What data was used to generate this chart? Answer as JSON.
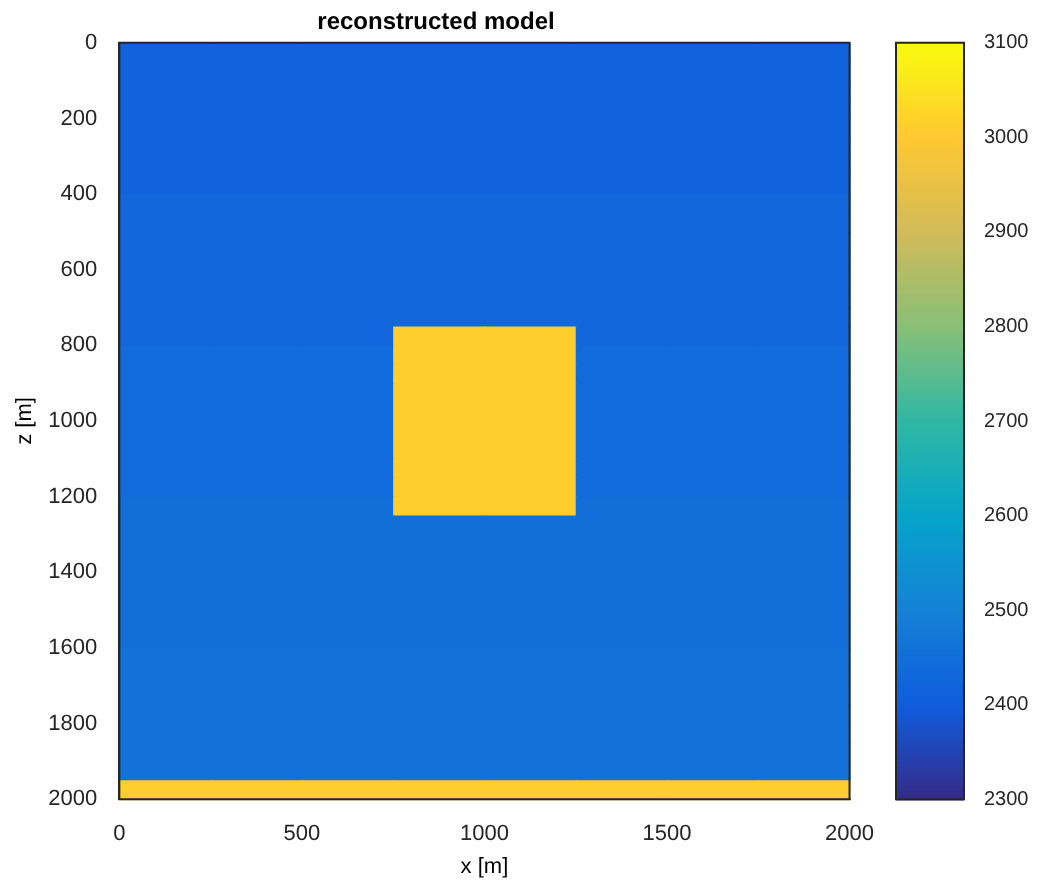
{
  "chart_data": {
    "type": "heatmap",
    "title": "reconstructed model",
    "xlabel": "x [m]",
    "ylabel": "z [m]",
    "x": [
      125,
      375,
      625,
      875,
      1125,
      1375,
      1625,
      1875
    ],
    "y": [
      25,
      75,
      125,
      175,
      225,
      275,
      325,
      375,
      425,
      475,
      525,
      575,
      625,
      675,
      725,
      775,
      825,
      875,
      925,
      975,
      1025,
      1075,
      1125,
      1175,
      1225,
      1275,
      1325,
      1375,
      1425,
      1475,
      1525,
      1575,
      1625,
      1675,
      1725,
      1775,
      1825,
      1875,
      1925,
      1975
    ],
    "xlim": [
      0,
      2000
    ],
    "xticks": [
      0,
      500,
      1000,
      1500,
      2000
    ],
    "ylim": [
      2000,
      0
    ],
    "yticks": [
      0,
      200,
      400,
      600,
      800,
      1000,
      1200,
      1400,
      1600,
      1800,
      2000
    ],
    "clim": [
      2300,
      3100
    ],
    "cticks": [
      2300,
      2400,
      2500,
      2600,
      2700,
      2800,
      2900,
      3000,
      3100
    ],
    "cells": [
      [
        2420,
        2420,
        2420,
        2420,
        2420,
        2420,
        2420,
        2420
      ],
      [
        2420,
        2420,
        2420,
        2420,
        2420,
        2420,
        2420,
        2420
      ],
      [
        2420,
        2420,
        2420,
        2420,
        2420,
        2420,
        2420,
        2420
      ],
      [
        2420,
        2420,
        2420,
        2420,
        2420,
        2420,
        2420,
        2420
      ],
      [
        2420,
        2420,
        2420,
        2420,
        2420,
        2420,
        2420,
        2420
      ],
      [
        2420,
        2420,
        2420,
        2420,
        2420,
        2420,
        2420,
        2420
      ],
      [
        2420,
        2420,
        2420,
        2420,
        2420,
        2420,
        2420,
        2420
      ],
      [
        2420,
        2420,
        2420,
        2420,
        2420,
        2420,
        2420,
        2420
      ],
      [
        2430,
        2430,
        2430,
        2430,
        2430,
        2430,
        2430,
        2430
      ],
      [
        2430,
        2430,
        2430,
        2430,
        2430,
        2430,
        2430,
        2430
      ],
      [
        2430,
        2430,
        2430,
        2430,
        2430,
        2430,
        2430,
        2430
      ],
      [
        2430,
        2430,
        2430,
        2430,
        2430,
        2430,
        2430,
        2430
      ],
      [
        2430,
        2430,
        2430,
        2430,
        2430,
        2430,
        2430,
        2430
      ],
      [
        2430,
        2430,
        2430,
        2430,
        2430,
        2430,
        2430,
        2430
      ],
      [
        2430,
        2430,
        2430,
        2430,
        2430,
        2430,
        2430,
        2430
      ],
      [
        2430,
        2430,
        2430,
        3010,
        3010,
        2430,
        2430,
        2430
      ],
      [
        2440,
        2440,
        2440,
        3010,
        3010,
        2440,
        2440,
        2440
      ],
      [
        2440,
        2440,
        2440,
        3010,
        3010,
        2440,
        2440,
        2440
      ],
      [
        2440,
        2440,
        2440,
        3010,
        3010,
        2440,
        2440,
        2440
      ],
      [
        2440,
        2440,
        2440,
        3010,
        3010,
        2440,
        2440,
        2440
      ],
      [
        2440,
        2440,
        2440,
        3010,
        3010,
        2440,
        2440,
        2440
      ],
      [
        2440,
        2440,
        2440,
        3010,
        3010,
        2440,
        2440,
        2440
      ],
      [
        2440,
        2440,
        2440,
        3010,
        3010,
        2440,
        2440,
        2440
      ],
      [
        2440,
        2440,
        2440,
        3010,
        3010,
        2440,
        2440,
        2440
      ],
      [
        2450,
        2450,
        2450,
        3010,
        3010,
        2450,
        2450,
        2450
      ],
      [
        2450,
        2450,
        2450,
        2450,
        2450,
        2450,
        2450,
        2450
      ],
      [
        2450,
        2450,
        2450,
        2450,
        2450,
        2450,
        2450,
        2450
      ],
      [
        2450,
        2450,
        2450,
        2450,
        2450,
        2450,
        2450,
        2450
      ],
      [
        2450,
        2450,
        2450,
        2450,
        2450,
        2450,
        2450,
        2450
      ],
      [
        2450,
        2450,
        2450,
        2450,
        2450,
        2450,
        2450,
        2450
      ],
      [
        2450,
        2450,
        2450,
        2450,
        2450,
        2450,
        2450,
        2450
      ],
      [
        2450,
        2450,
        2450,
        2450,
        2450,
        2450,
        2450,
        2450
      ],
      [
        2460,
        2460,
        2460,
        2460,
        2460,
        2460,
        2460,
        2460
      ],
      [
        2460,
        2460,
        2460,
        2460,
        2460,
        2460,
        2460,
        2460
      ],
      [
        2460,
        2460,
        2460,
        2460,
        2460,
        2460,
        2460,
        2460
      ],
      [
        2460,
        2460,
        2460,
        2460,
        2460,
        2460,
        2460,
        2460
      ],
      [
        2460,
        2460,
        2460,
        2460,
        2460,
        2460,
        2460,
        2460
      ],
      [
        2460,
        2460,
        2460,
        2460,
        2460,
        2460,
        2460,
        2460
      ],
      [
        2460,
        2460,
        2460,
        2460,
        2460,
        2460,
        2460,
        2460
      ],
      [
        3010,
        3010,
        3010,
        3010,
        3010,
        3010,
        3010,
        3010
      ]
    ]
  }
}
